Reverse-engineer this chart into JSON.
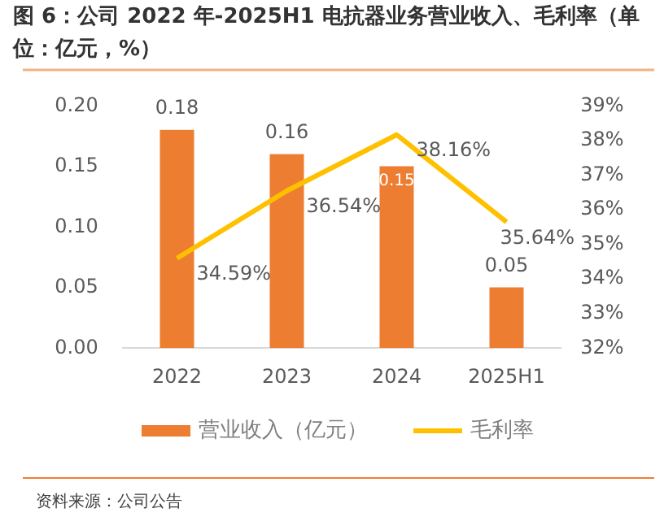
{
  "chart_data": {
    "type": "bar",
    "title": "图 6：公司 2022 年-2025H1 电抗器业务营业收入、毛利率（单位：亿元，%）",
    "categories": [
      "2022",
      "2023",
      "2024",
      "2025H1"
    ],
    "series": [
      {
        "name": "营业收入（亿元）",
        "type": "bar",
        "color": "#ed7d31",
        "values": [
          0.18,
          0.16,
          0.15,
          0.05
        ],
        "value_labels": [
          "0.18",
          "0.16",
          "0.15",
          "0.05"
        ]
      },
      {
        "name": "毛利率",
        "type": "line",
        "axis": "y2",
        "color": "#ffc000",
        "values": [
          34.59,
          36.54,
          38.16,
          35.64
        ],
        "value_labels": [
          "34.59%",
          "36.54%",
          "38.16%",
          "35.64%"
        ]
      }
    ],
    "ylim": [
      0,
      0.2
    ],
    "yticks": [
      {
        "value": 0,
        "label": "0.00"
      },
      {
        "value": 0.05,
        "label": "0.05"
      },
      {
        "value": 0.1,
        "label": "0.10"
      },
      {
        "value": 0.15,
        "label": "0.15"
      },
      {
        "value": 0.2,
        "label": "0.20"
      }
    ],
    "y2lim": [
      32,
      39
    ],
    "y2ticks": [
      {
        "value": 32,
        "label": "32%"
      },
      {
        "value": 33,
        "label": "33%"
      },
      {
        "value": 34,
        "label": "34%"
      },
      {
        "value": 35,
        "label": "35%"
      },
      {
        "value": 36,
        "label": "36%"
      },
      {
        "value": 37,
        "label": "37%"
      },
      {
        "value": 38,
        "label": "38%"
      },
      {
        "value": 39,
        "label": "39%"
      }
    ],
    "grid": false,
    "legend": "bottom",
    "annotations": [
      "资料来源：公司公告"
    ]
  }
}
